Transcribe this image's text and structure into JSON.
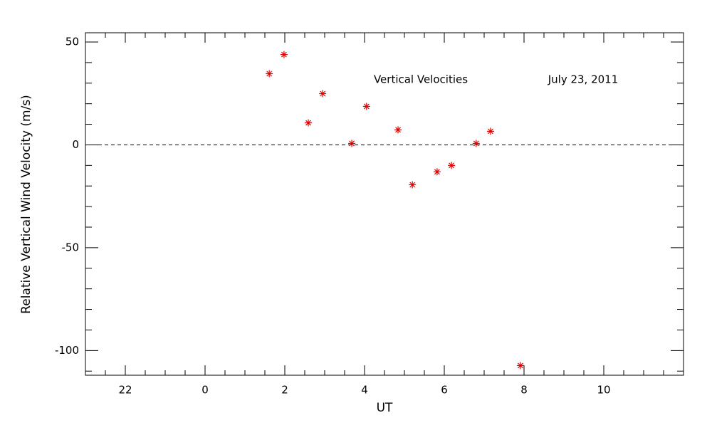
{
  "chart_data": {
    "type": "scatter",
    "annotations": [
      "Vertical Velocities",
      "July 23, 2011"
    ],
    "xlabel": "UT",
    "ylabel": "Relative Vertical Wind Velocity (m/s)",
    "series": [
      {
        "color": "#e00000",
        "marker": "asterisk",
        "x": [
          1.61,
          1.98,
          2.59,
          2.95,
          3.68,
          4.05,
          4.84,
          5.2,
          5.82,
          6.18,
          6.8,
          7.16,
          7.91
        ],
        "values": [
          34.6,
          43.9,
          10.7,
          24.9,
          0.7,
          18.7,
          7.3,
          -19.4,
          -13.1,
          -10.0,
          0.7,
          6.6,
          -107.3
        ]
      }
    ],
    "xlim": [
      -3,
      12
    ],
    "xticks": [
      {
        "value": -2,
        "label": "22"
      },
      0,
      2,
      4,
      6,
      8,
      10
    ],
    "xminorticks": [
      -2.5,
      -1.5,
      -1,
      -0.5,
      0.5,
      1,
      1.5,
      2.5,
      3,
      3.5,
      4.5,
      5,
      5.5,
      6.5,
      7,
      7.5,
      8.5,
      9,
      9.5,
      10.5,
      11,
      11.5
    ],
    "ylim": [
      -112,
      54.5
    ],
    "yticks": [
      -100,
      -50,
      0,
      50
    ],
    "yminorticks": [
      -110,
      -90,
      -80,
      -70,
      -60,
      -40,
      -30,
      -20,
      -10,
      10,
      20,
      30,
      40
    ],
    "reference_line": 0,
    "grid": false
  }
}
